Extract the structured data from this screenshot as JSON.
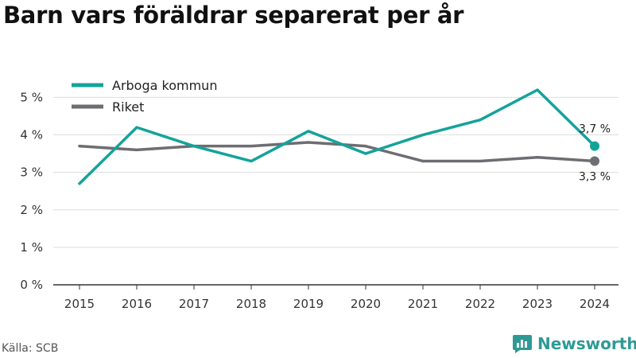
{
  "chart_data": {
    "type": "line",
    "title": "Barn vars föräldrar separerat per år",
    "x": [
      "2015",
      "2016",
      "2017",
      "2018",
      "2019",
      "2020",
      "2021",
      "2022",
      "2023",
      "2024"
    ],
    "y_ticks": [
      0,
      1,
      2,
      3,
      4,
      5
    ],
    "y_tick_labels": [
      "0 %",
      "1 %",
      "2 %",
      "3 %",
      "4 %",
      "5 %"
    ],
    "ylim": [
      0,
      5.2
    ],
    "grid": true,
    "legend_position": "top-left",
    "series": [
      {
        "name": "Arboga kommun",
        "color": "#14a39a",
        "values": [
          2.7,
          4.2,
          3.7,
          3.3,
          4.1,
          3.5,
          4.0,
          4.4,
          5.2,
          3.7
        ],
        "end_label": "3,7 %"
      },
      {
        "name": "Riket",
        "color": "#6d6d72",
        "values": [
          3.7,
          3.6,
          3.7,
          3.7,
          3.8,
          3.7,
          3.3,
          3.3,
          3.4,
          3.3
        ],
        "end_label": "3,3 %"
      }
    ]
  },
  "footer": {
    "source": "Källa: SCB",
    "brand": "Newsworthy",
    "brand_icon": "newsworthy-logo-icon",
    "brand_color": "#2f9a95"
  }
}
